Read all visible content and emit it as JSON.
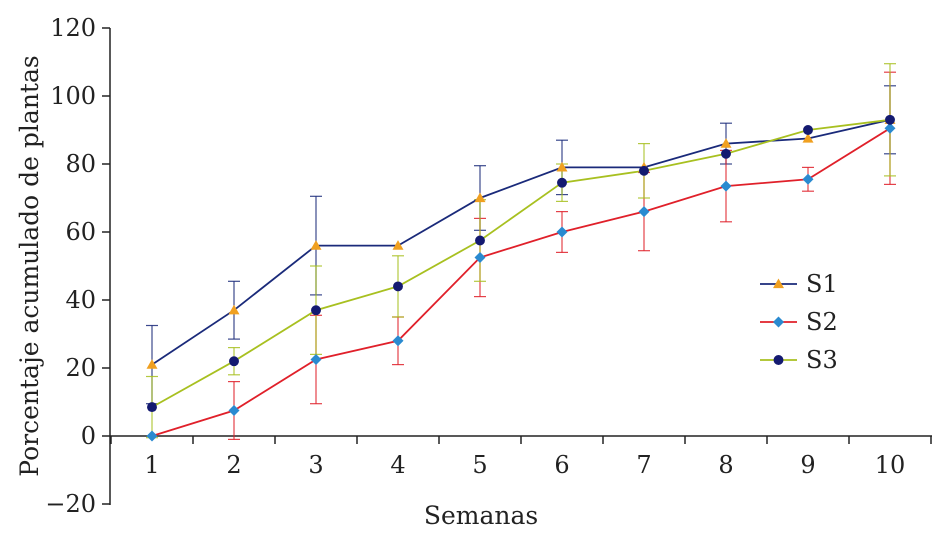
{
  "chart_data": {
    "type": "line",
    "xlabel": "Semanas",
    "ylabel": "Porcentaje acumulado de plantas",
    "ylim": [
      -20,
      120
    ],
    "yticks": [
      -20,
      0,
      20,
      40,
      60,
      80,
      100,
      120
    ],
    "ytick_labels": [
      "−20",
      "0",
      "20",
      "40",
      "60",
      "80",
      "100",
      "120"
    ],
    "x": [
      1,
      2,
      3,
      4,
      5,
      6,
      7,
      8,
      9,
      10
    ],
    "xtick_labels": [
      "1",
      "2",
      "3",
      "4",
      "5",
      "6",
      "7",
      "8",
      "9",
      "10"
    ],
    "grid": false,
    "legend_position": "right",
    "series": [
      {
        "name": "S1",
        "line_color": "#1a2a7a",
        "marker_color": "#f0a020",
        "marker": "triangle",
        "values": [
          21,
          37,
          56,
          56,
          70,
          79,
          79,
          86,
          87.5,
          93
        ],
        "errors": [
          11.5,
          8.5,
          14.5,
          0,
          9.5,
          8,
          0,
          6,
          0,
          10
        ]
      },
      {
        "name": "S2",
        "line_color": "#e0202a",
        "marker_color": "#2a8ad0",
        "marker": "diamond",
        "values": [
          0,
          7.5,
          22.5,
          28,
          52.5,
          60,
          66,
          73.5,
          75.5,
          90.5
        ],
        "errors": [
          0,
          8.5,
          13,
          7,
          11.5,
          6,
          11.5,
          10.5,
          3.5,
          16.5
        ]
      },
      {
        "name": "S3",
        "line_color": "#a8c020",
        "marker_color": "#141a70",
        "marker": "circle",
        "values": [
          8.5,
          22,
          37,
          44,
          57.5,
          74.5,
          78,
          83,
          90,
          93
        ],
        "errors": [
          9,
          4,
          13,
          9,
          12,
          5.5,
          8,
          0,
          0,
          16.5
        ]
      }
    ]
  }
}
